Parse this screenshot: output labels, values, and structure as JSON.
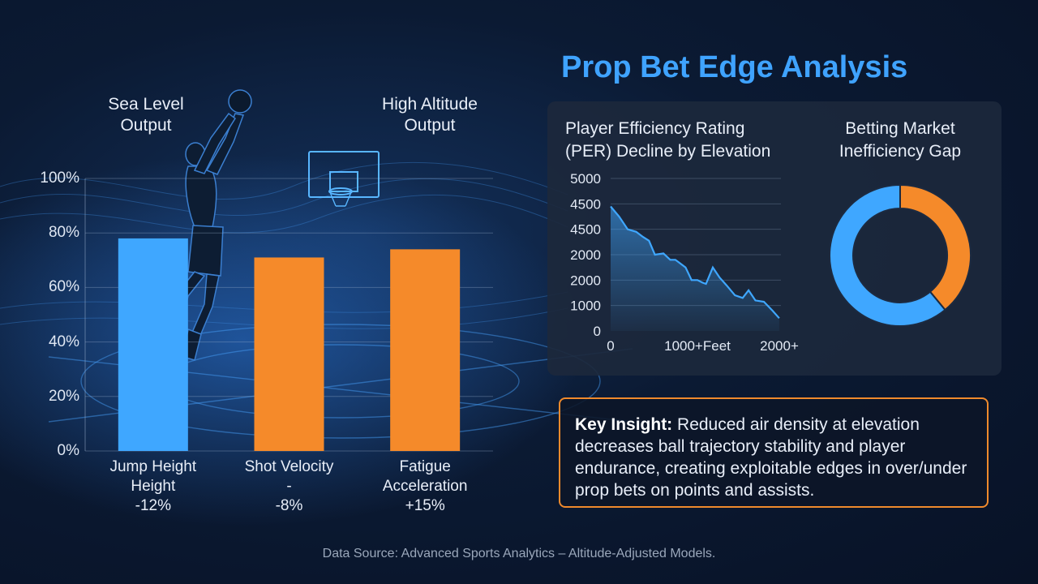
{
  "title": "Prop Bet Edge Analysis",
  "headers": {
    "sea_level": "Sea Level Output",
    "high_altitude": "High Altitude Output"
  },
  "chart_data": [
    {
      "type": "bar",
      "categories": [
        "Jump Height Height -12%",
        "Shot Velocity - -8%",
        "Fatigue Acceleration +15%"
      ],
      "category_lines": [
        [
          "Jump Height",
          "Height",
          "-12%"
        ],
        [
          "Shot Velocity",
          "-",
          "-8%"
        ],
        [
          "Fatigue",
          "Acceleration",
          "+15%"
        ]
      ],
      "values": [
        78,
        71,
        74
      ],
      "colors": [
        "#3fa7ff",
        "#f58a2a",
        "#f58a2a"
      ],
      "ylim": [
        0,
        100
      ],
      "yticks": [
        "0%",
        "20%",
        "40%",
        "60%",
        "80%",
        "100%"
      ],
      "grid": true
    },
    {
      "type": "area",
      "title": "Player Efficiency Rating (PER) Decline by Elevation",
      "title_lines": [
        "Player Efficiency Rating",
        "(PER) Decline by Elevation"
      ],
      "x": [
        0,
        100,
        200,
        300,
        380,
        450,
        520,
        620,
        700,
        760,
        800,
        880,
        950,
        1020,
        1080,
        1120,
        1200,
        1280,
        1360,
        1460,
        1550,
        1620,
        1700,
        1800,
        1900,
        1980
      ],
      "y": [
        4900,
        4500,
        4000,
        3900,
        3700,
        3550,
        3000,
        3050,
        2800,
        2800,
        2700,
        2500,
        2000,
        2000,
        1900,
        1850,
        2500,
        2100,
        1800,
        1400,
        1300,
        1600,
        1200,
        1150,
        800,
        500
      ],
      "y_tick_labels": [
        "0",
        "1000",
        "2000",
        "2000",
        "4500",
        "4500",
        "5000"
      ],
      "x_tick_labels": [
        "0",
        "1000+Feet",
        "2000+"
      ],
      "ylim": [
        0,
        6000
      ],
      "xlim": [
        0,
        2000
      ],
      "color": "#3fa7ff"
    },
    {
      "type": "pie",
      "title": "Betting Market Inefficiency Gap",
      "title_lines": [
        "Betting Market",
        "Inefficiency Gap"
      ],
      "values": [
        61,
        39
      ],
      "colors": [
        "#3fa7ff",
        "#f58a2a"
      ],
      "donut": true
    }
  ],
  "insight": {
    "label": "Key Insight:",
    "text": " Reduced air density at elevation decreases ball trajectory stability and player endurance, creating exploitable edges in over/under prop bets on points and assists."
  },
  "source": "Data Source: Advanced Sports Analytics – Altitude-Adjusted Models."
}
